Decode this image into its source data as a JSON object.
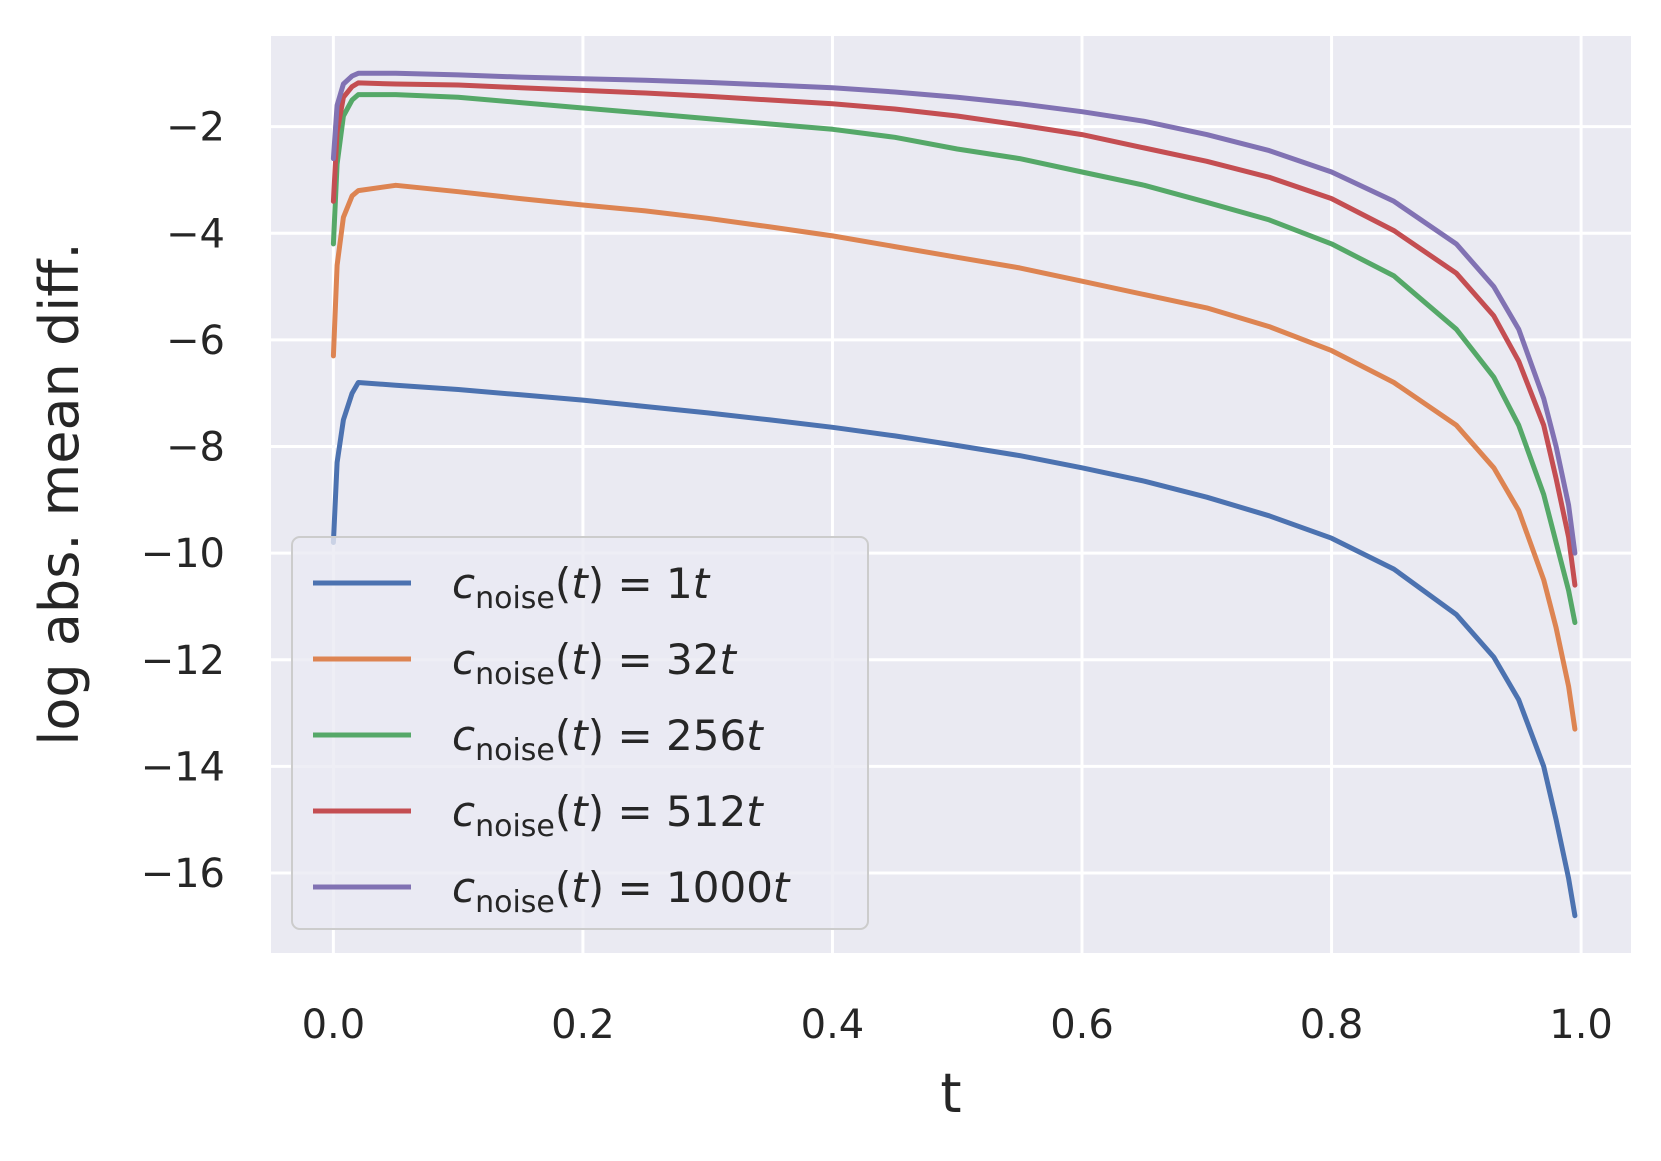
{
  "chart_data": {
    "type": "line",
    "title": "",
    "xlabel": "t",
    "ylabel": "log abs. mean diff.",
    "xlim": [
      -0.05,
      1.04
    ],
    "ylim": [
      -17.5,
      -0.3
    ],
    "grid": true,
    "legend_position": "lower-left",
    "xticks": [
      0.0,
      0.2,
      0.4,
      0.6,
      0.8,
      1.0
    ],
    "xtick_labels": [
      "0.0",
      "0.2",
      "0.4",
      "0.6",
      "0.8",
      "1.0"
    ],
    "yticks": [
      -2,
      -4,
      -6,
      -8,
      -10,
      -12,
      -14,
      -16
    ],
    "ytick_labels": [
      "−2",
      "−4",
      "−6",
      "−8",
      "−10",
      "−12",
      "−14",
      "−16"
    ],
    "x": [
      0.0,
      0.003,
      0.008,
      0.015,
      0.02,
      0.05,
      0.1,
      0.15,
      0.2,
      0.25,
      0.3,
      0.35,
      0.4,
      0.45,
      0.5,
      0.55,
      0.6,
      0.65,
      0.7,
      0.75,
      0.8,
      0.85,
      0.9,
      0.93,
      0.95,
      0.97,
      0.98,
      0.99,
      0.995
    ],
    "series": [
      {
        "name": "c_noise(t) = 1t",
        "legend_coef": "1",
        "color": "#4c72b0",
        "values": [
          -9.8,
          -8.3,
          -7.5,
          -7.0,
          -6.8,
          -6.85,
          -6.93,
          -7.03,
          -7.13,
          -7.25,
          -7.37,
          -7.5,
          -7.64,
          -7.8,
          -7.98,
          -8.17,
          -8.4,
          -8.65,
          -8.95,
          -9.3,
          -9.72,
          -10.3,
          -11.15,
          -11.95,
          -12.75,
          -14.0,
          -15.0,
          -16.1,
          -16.8
        ]
      },
      {
        "name": "c_noise(t) = 32t",
        "legend_coef": "32",
        "color": "#dd8452",
        "values": [
          -6.3,
          -4.6,
          -3.7,
          -3.3,
          -3.2,
          -3.1,
          -3.22,
          -3.35,
          -3.47,
          -3.58,
          -3.72,
          -3.88,
          -4.05,
          -4.25,
          -4.45,
          -4.65,
          -4.9,
          -5.15,
          -5.4,
          -5.75,
          -6.2,
          -6.8,
          -7.6,
          -8.4,
          -9.2,
          -10.5,
          -11.4,
          -12.5,
          -13.3
        ]
      },
      {
        "name": "c_noise(t) = 256t",
        "legend_coef": "256",
        "color": "#55a868",
        "values": [
          -4.2,
          -2.7,
          -1.8,
          -1.5,
          -1.4,
          -1.4,
          -1.45,
          -1.55,
          -1.65,
          -1.75,
          -1.85,
          -1.95,
          -2.05,
          -2.2,
          -2.42,
          -2.6,
          -2.85,
          -3.1,
          -3.42,
          -3.75,
          -4.2,
          -4.8,
          -5.8,
          -6.7,
          -7.6,
          -8.9,
          -9.8,
          -10.7,
          -11.3
        ]
      },
      {
        "name": "c_noise(t) = 512t",
        "legend_coef": "512",
        "color": "#c44e52",
        "values": [
          -3.4,
          -2.1,
          -1.45,
          -1.25,
          -1.18,
          -1.2,
          -1.22,
          -1.27,
          -1.32,
          -1.37,
          -1.43,
          -1.5,
          -1.57,
          -1.67,
          -1.8,
          -1.97,
          -2.15,
          -2.4,
          -2.65,
          -2.95,
          -3.35,
          -3.95,
          -4.75,
          -5.55,
          -6.4,
          -7.6,
          -8.6,
          -9.7,
          -10.6
        ]
      },
      {
        "name": "c_noise(t) = 1000t",
        "legend_coef": "1000",
        "color": "#8172b3",
        "values": [
          -2.6,
          -1.6,
          -1.2,
          -1.05,
          -1.0,
          -1.0,
          -1.03,
          -1.07,
          -1.1,
          -1.13,
          -1.17,
          -1.22,
          -1.27,
          -1.35,
          -1.45,
          -1.57,
          -1.72,
          -1.9,
          -2.15,
          -2.45,
          -2.85,
          -3.4,
          -4.2,
          -5.0,
          -5.8,
          -7.1,
          -8.0,
          -9.1,
          -10.0
        ]
      }
    ]
  }
}
